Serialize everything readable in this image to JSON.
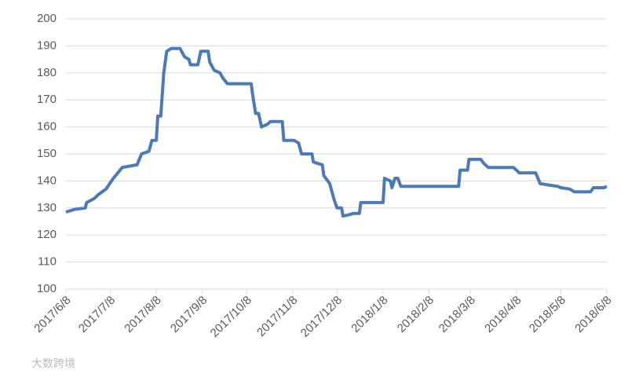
{
  "chart_data": {
    "type": "line",
    "x": [
      "2017/6/8",
      "2017/6/14",
      "2017/6/21",
      "2017/6/22",
      "2017/6/27",
      "2017/6/30",
      "2017/7/5",
      "2017/7/10",
      "2017/7/13",
      "2017/7/16",
      "2017/7/21",
      "2017/7/26",
      "2017/7/29",
      "2017/8/3",
      "2017/8/5",
      "2017/8/8",
      "2017/8/9",
      "2017/8/11",
      "2017/8/13",
      "2017/8/15",
      "2017/8/18",
      "2017/8/24",
      "2017/8/27",
      "2017/8/30",
      "2017/8/31",
      "2017/9/5",
      "2017/9/7",
      "2017/9/12",
      "2017/9/13",
      "2017/9/16",
      "2017/9/20",
      "2017/9/22",
      "2017/9/25",
      "2017/10/11",
      "2017/10/12",
      "2017/10/14",
      "2017/10/16",
      "2017/10/18",
      "2017/10/22",
      "2017/10/24",
      "2017/11/1",
      "2017/11/2",
      "2017/11/9",
      "2017/11/12",
      "2017/11/14",
      "2017/11/21",
      "2017/11/22",
      "2017/11/28",
      "2017/11/29",
      "2017/12/3",
      "2017/12/6",
      "2017/12/8",
      "2017/12/11",
      "2017/12/12",
      "2017/12/16",
      "2017/12/19",
      "2017/12/23",
      "2017/12/24",
      "2018/1/1",
      "2018/1/8",
      "2018/1/9",
      "2018/1/13",
      "2018/1/14",
      "2018/1/16",
      "2018/1/18",
      "2018/1/20",
      "2018/2/28",
      "2018/3/1",
      "2018/3/6",
      "2018/3/7",
      "2018/3/15",
      "2018/3/17",
      "2018/3/20",
      "2018/4/6",
      "2018/4/10",
      "2018/4/21",
      "2018/4/24",
      "2018/4/30",
      "2018/5/6",
      "2018/5/8",
      "2018/5/14",
      "2018/5/17",
      "2018/5/28",
      "2018/5/30",
      "2018/6/6",
      "2018/6/8"
    ],
    "series": [
      {
        "color": "#4a7ab8",
        "values": [
          128.5,
          129.5,
          130,
          132,
          133.5,
          135,
          137,
          141,
          143,
          145,
          145.5,
          146,
          150,
          151,
          155,
          155,
          164,
          164,
          180,
          188,
          189,
          189,
          186,
          185,
          183,
          183,
          188,
          188,
          184,
          181,
          180,
          178,
          176,
          176,
          172,
          165,
          165,
          160,
          161,
          162,
          162,
          155,
          155,
          154,
          150,
          150,
          147,
          146,
          142,
          139,
          133,
          130,
          130,
          127,
          127.5,
          128,
          128,
          132,
          132,
          132,
          141,
          140,
          137.5,
          141,
          141,
          138,
          138,
          144,
          144,
          148,
          148,
          146.5,
          145,
          145,
          143,
          143,
          139,
          138.5,
          138,
          137.5,
          137,
          136,
          136,
          137.5,
          137.5,
          138
        ]
      }
    ],
    "xlim": [
      "2017/6/8",
      "2018/6/8"
    ],
    "xticks": [
      "2017/6/8",
      "2017/7/8",
      "2017/8/8",
      "2017/9/8",
      "2017/10/8",
      "2017/11/8",
      "2017/12/8",
      "2018/1/8",
      "2018/2/8",
      "2018/3/8",
      "2018/4/8",
      "2018/5/8",
      "2018/6/8"
    ],
    "ylim": [
      100,
      200
    ],
    "yticks": [
      100,
      110,
      120,
      130,
      140,
      150,
      160,
      170,
      180,
      190,
      200
    ],
    "grid": true,
    "watermark": "大数跨境"
  }
}
